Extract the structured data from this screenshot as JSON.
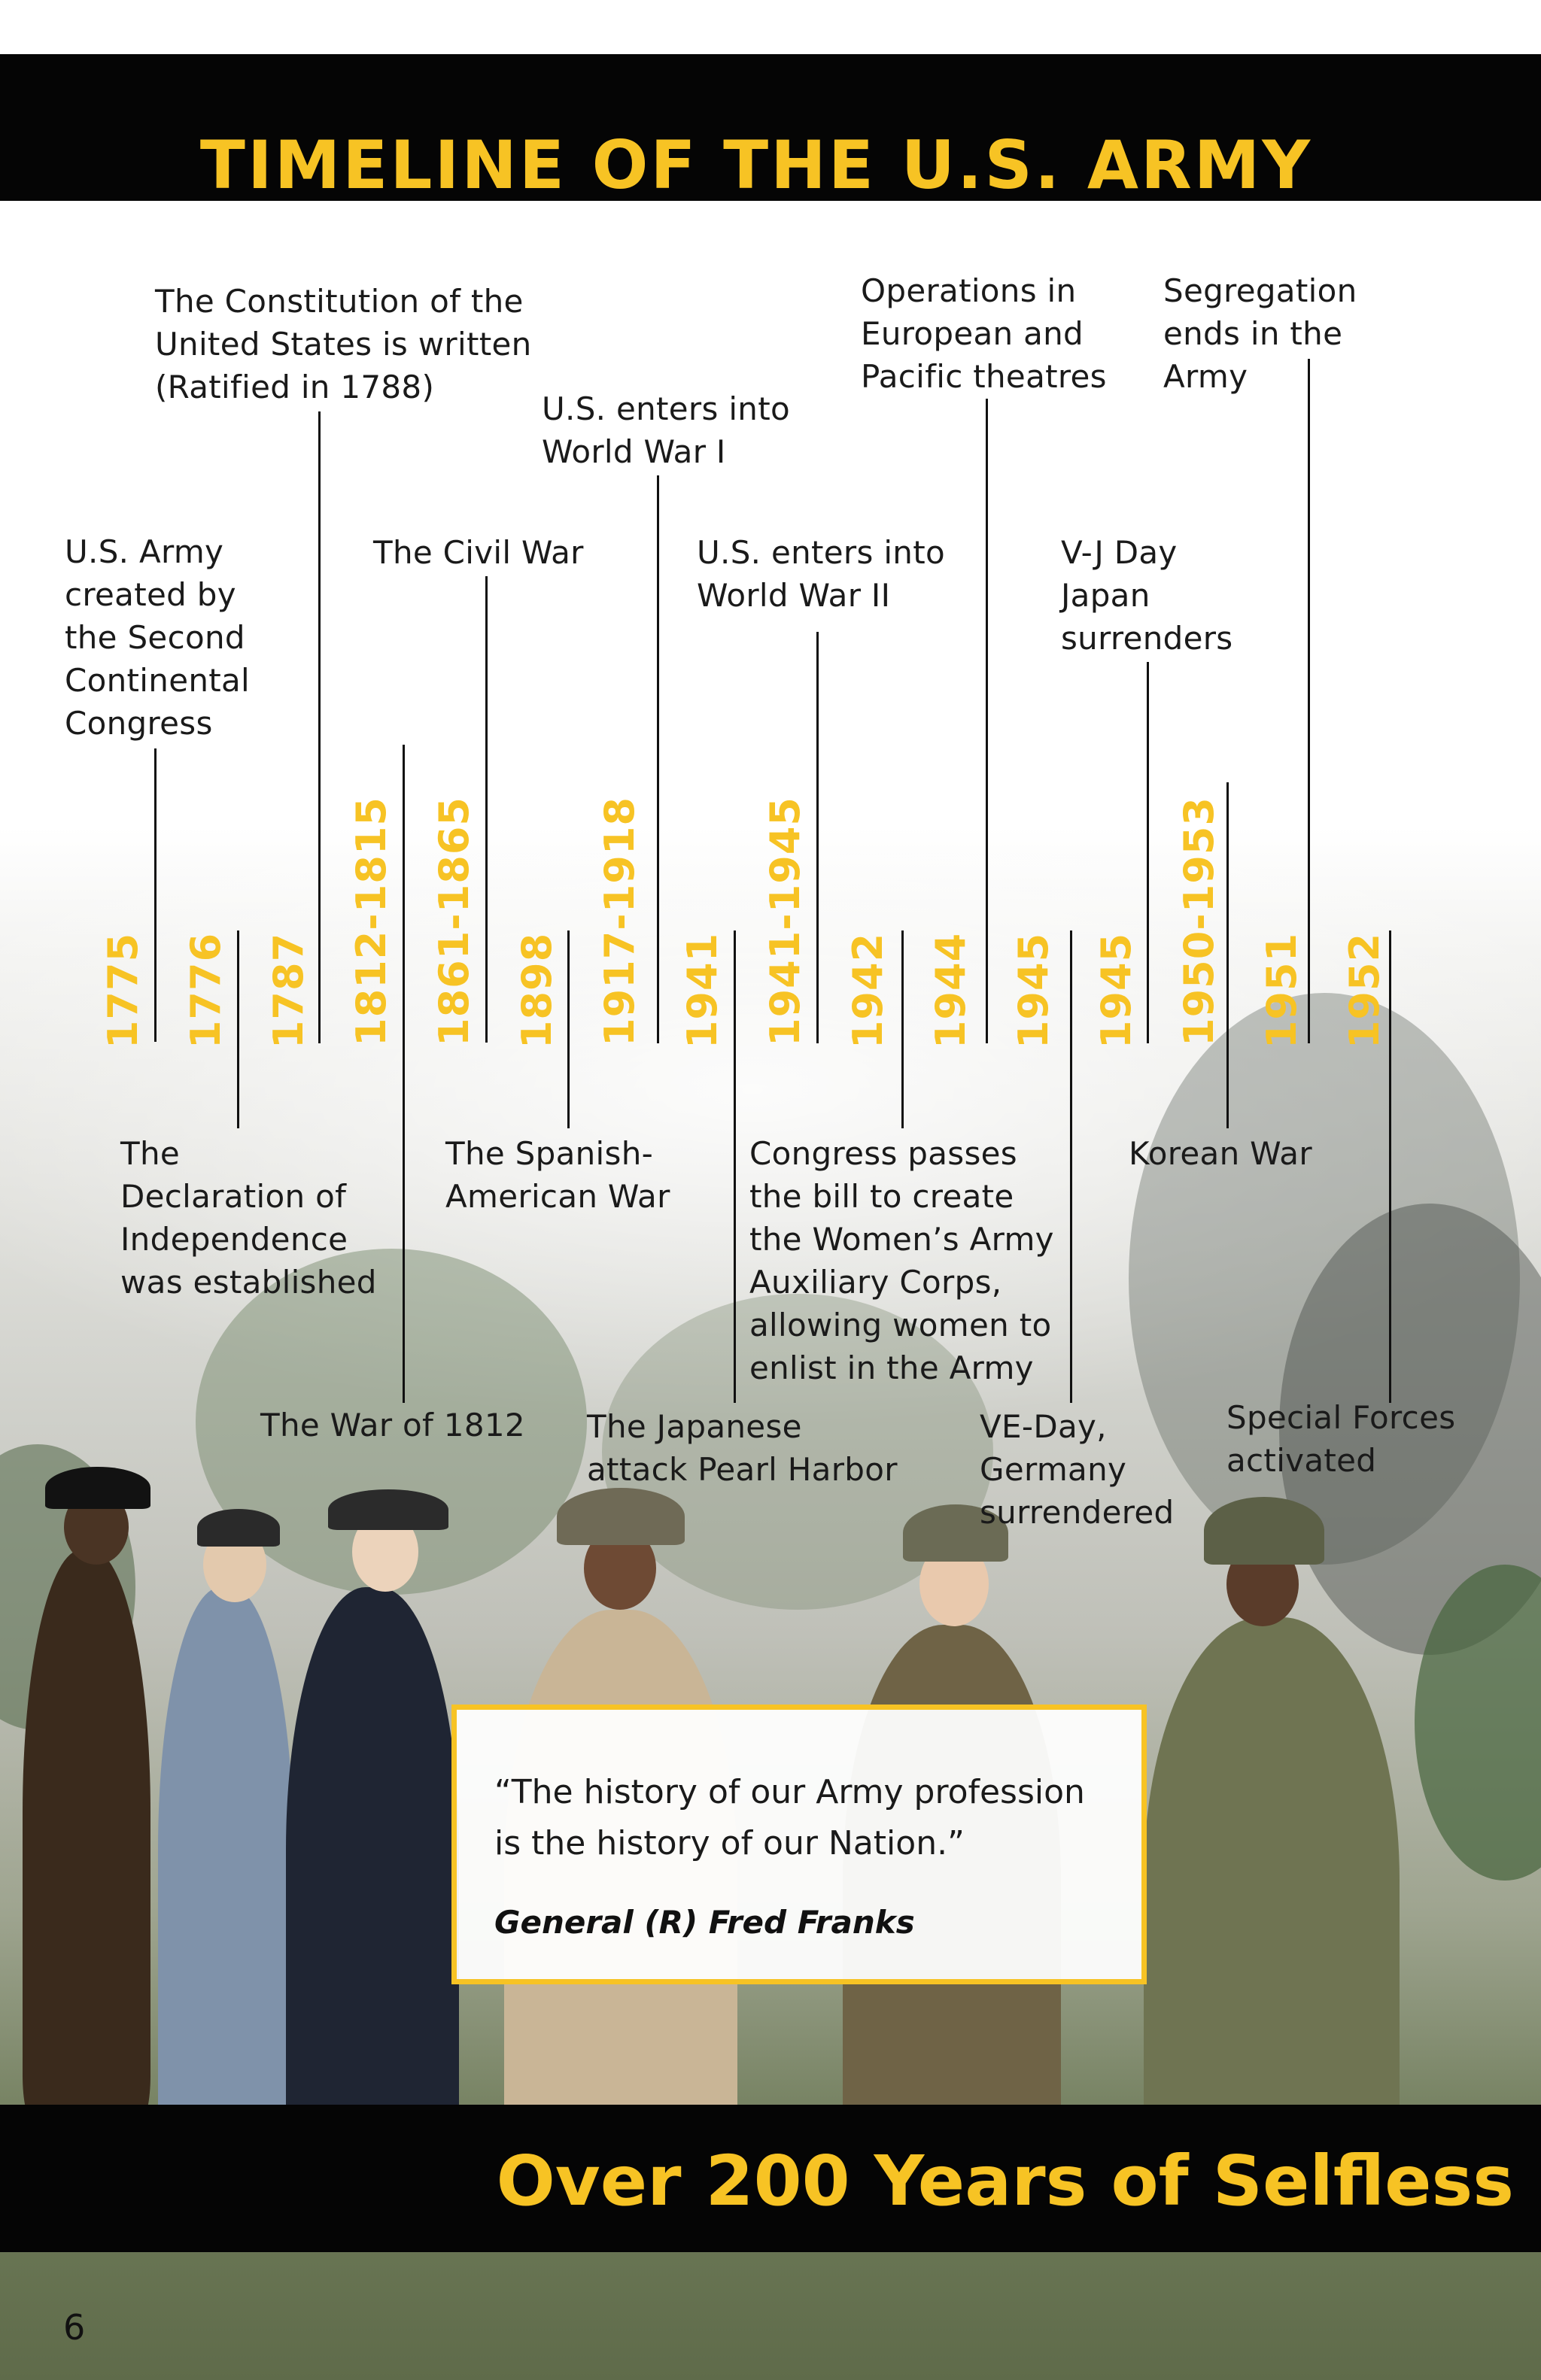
{
  "header": {
    "title": "TIMELINE OF THE U.S. ARMY"
  },
  "timeline": {
    "years": [
      "1775",
      "1776",
      "1787",
      "1812-1815",
      "1861-1865",
      "1898",
      "1917-1918",
      "1941",
      "1941-1945",
      "1942",
      "1944",
      "1945",
      "1945",
      "1950-1953",
      "1951",
      "1952"
    ],
    "events": [
      "U.S. Army\ncreated by\nthe Second\nContinental\nCongress",
      "The\nDeclaration of\nIndependence\nwas established",
      "The Constitution of the\nUnited States is written\n(Ratified in 1788)",
      "The War of 1812",
      "The Civil War",
      "The Spanish-\nAmerican War",
      "U.S. enters into\nWorld War I",
      "The Japanese\nattack Pearl Harbor",
      "U.S. enters into\nWorld War II",
      "Congress passes\nthe bill to create\nthe Women’s Army\nAuxiliary Corps,\nallowing women to\nenlist in the Army",
      "Operations in\nEuropean and\nPacific theatres",
      "VE-Day,\nGermany\nsurrendered",
      "V-J Day\nJapan\nsurrenders",
      "Korean War",
      "Segregation\nends in the\nArmy",
      "Special Forces\nactivated"
    ]
  },
  "quote": {
    "text": "“The history of our Army profession is the history of our Nation.”",
    "author": "General (R) Fred Franks"
  },
  "footer": {
    "slogan": "Over 200 Years of Selfless",
    "page_number": "6"
  },
  "colors": {
    "accent": "#f7c324",
    "bar": "#050505"
  }
}
